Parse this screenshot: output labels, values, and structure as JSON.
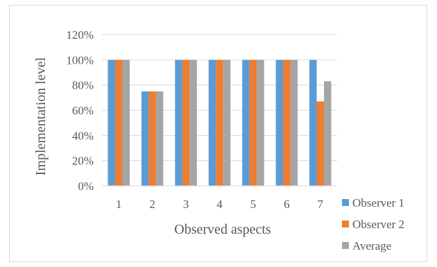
{
  "chart_data": {
    "type": "bar",
    "title": "",
    "xlabel": "Observed aspects",
    "ylabel": "Implementation level",
    "categories": [
      "1",
      "2",
      "3",
      "4",
      "5",
      "6",
      "7"
    ],
    "series": [
      {
        "name": "Observer 1",
        "color": "#5b9bd5",
        "values": [
          100,
          75,
          100,
          100,
          100,
          100,
          100
        ]
      },
      {
        "name": "Observer 2",
        "color": "#ed7d31",
        "values": [
          100,
          75,
          100,
          100,
          100,
          100,
          67
        ]
      },
      {
        "name": "Average",
        "color": "#a5a5a5",
        "values": [
          100,
          75,
          100,
          100,
          100,
          100,
          83
        ]
      }
    ],
    "yticks": [
      "0%",
      "20%",
      "40%",
      "60%",
      "80%",
      "100%",
      "120%"
    ],
    "ylim": [
      0,
      120
    ],
    "grid": true,
    "legend": "right"
  }
}
